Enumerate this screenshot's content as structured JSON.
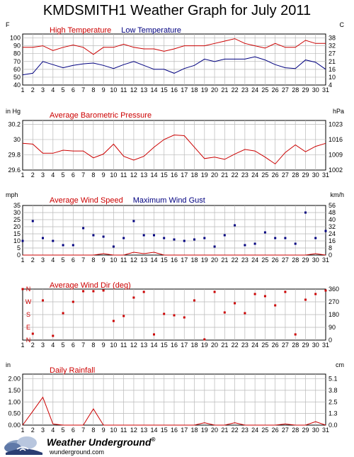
{
  "title": "KMDSMITH1 Weather Graph for July 2011",
  "footer": {
    "logo_text": "Weather Underground",
    "logo_mark": "®",
    "url": "wunderground.com"
  },
  "colors": {
    "red": "#cc0000",
    "blue": "#000080",
    "grid": "#b8b8b8"
  },
  "chart_data": [
    {
      "type": "line",
      "title": "",
      "left_unit": "F",
      "right_unit": "C",
      "x": [
        1,
        2,
        3,
        4,
        5,
        6,
        7,
        8,
        9,
        10,
        11,
        12,
        13,
        14,
        15,
        16,
        17,
        18,
        19,
        20,
        21,
        22,
        23,
        24,
        25,
        26,
        27,
        28,
        29,
        30,
        31
      ],
      "ylim": [
        40,
        105
      ],
      "left_ticks": [
        40,
        50,
        60,
        70,
        80,
        90,
        100
      ],
      "right_ticks": [
        {
          "value": 4,
          "at": 40
        },
        {
          "value": 10,
          "at": 50
        },
        {
          "value": 16,
          "at": 60
        },
        {
          "value": 21,
          "at": 70
        },
        {
          "value": 27,
          "at": 80
        },
        {
          "value": 32,
          "at": 90
        },
        {
          "value": 38,
          "at": 100
        }
      ],
      "legend": [
        {
          "name": "High Temperature",
          "color": "red"
        },
        {
          "name": "Low Temperature",
          "color": "blue"
        }
      ],
      "series": [
        {
          "name": "High Temperature",
          "color": "red",
          "style": "line",
          "values": [
            88,
            88,
            90,
            84,
            88,
            91,
            88,
            79,
            88,
            88,
            92,
            88,
            86,
            86,
            83,
            86,
            90,
            90,
            90,
            93,
            96,
            99,
            93,
            90,
            87,
            93,
            88,
            88,
            97,
            93,
            93
          ]
        },
        {
          "name": "Low Temperature",
          "color": "blue",
          "style": "line",
          "values": [
            53,
            55,
            70,
            66,
            62,
            65,
            67,
            68,
            65,
            61,
            66,
            70,
            65,
            60,
            60,
            55,
            61,
            65,
            73,
            70,
            73,
            73,
            73,
            76,
            72,
            66,
            62,
            61,
            72,
            69,
            60
          ]
        }
      ]
    },
    {
      "type": "line",
      "title": "Average Barometric Pressure",
      "left_unit": "in Hg",
      "right_unit": "hPa",
      "x": [
        1,
        2,
        3,
        4,
        5,
        6,
        7,
        8,
        9,
        10,
        11,
        12,
        13,
        14,
        15,
        16,
        17,
        18,
        19,
        20,
        21,
        22,
        23,
        24,
        25,
        26,
        27,
        28,
        29,
        30,
        31
      ],
      "ylim": [
        29.6,
        30.25
      ],
      "left_ticks": [
        29.6,
        29.8,
        30.0,
        30.2
      ],
      "right_ticks": [
        {
          "value": 1002,
          "at": 29.6
        },
        {
          "value": 1009,
          "at": 29.8
        },
        {
          "value": 1016,
          "at": 30.0
        },
        {
          "value": 1023,
          "at": 30.2
        }
      ],
      "legend": [
        {
          "name": "Average Barometric Pressure",
          "color": "red"
        }
      ],
      "series": [
        {
          "name": "Average Barometric Pressure",
          "color": "red",
          "style": "line",
          "values": [
            29.95,
            29.94,
            29.82,
            29.82,
            29.86,
            29.85,
            29.85,
            29.76,
            29.81,
            29.94,
            29.78,
            29.73,
            29.78,
            29.9,
            30.0,
            30.06,
            30.05,
            29.9,
            29.75,
            29.77,
            29.74,
            29.81,
            29.87,
            29.85,
            29.77,
            29.68,
            29.83,
            29.93,
            29.84,
            29.91,
            29.95
          ]
        }
      ]
    },
    {
      "type": "scatter",
      "title": "",
      "left_unit": "mph",
      "right_unit": "km/h",
      "x": [
        1,
        2,
        3,
        4,
        5,
        6,
        7,
        8,
        9,
        10,
        11,
        12,
        13,
        14,
        15,
        16,
        17,
        18,
        19,
        20,
        21,
        22,
        23,
        24,
        25,
        26,
        27,
        28,
        29,
        30,
        31
      ],
      "ylim": [
        0,
        35
      ],
      "left_ticks": [
        0,
        5,
        10,
        15,
        20,
        25,
        30,
        35
      ],
      "right_ticks": [
        {
          "value": 0,
          "at": 0
        },
        {
          "value": 8,
          "at": 5
        },
        {
          "value": 16,
          "at": 10
        },
        {
          "value": 24,
          "at": 15
        },
        {
          "value": 32,
          "at": 20
        },
        {
          "value": 40,
          "at": 25
        },
        {
          "value": 48,
          "at": 30
        },
        {
          "value": 56,
          "at": 35
        }
      ],
      "legend": [
        {
          "name": "Average Wind Speed",
          "color": "red"
        },
        {
          "name": "Maximum Wind Gust",
          "color": "blue"
        }
      ],
      "series": [
        {
          "name": "Average Wind Speed",
          "color": "red",
          "style": "line",
          "values": [
            0,
            0,
            0,
            0,
            0,
            0,
            0,
            0,
            1,
            0,
            0,
            2,
            1,
            2,
            0,
            0,
            0,
            0,
            0,
            0,
            0,
            0,
            0,
            0,
            0,
            0,
            0,
            0,
            0,
            1,
            0
          ]
        },
        {
          "name": "Maximum Wind Gust",
          "color": "blue",
          "style": "points",
          "values": [
            10,
            24,
            12,
            10,
            7,
            7,
            19,
            14,
            13,
            6,
            12,
            24,
            14,
            14,
            12,
            11,
            10,
            11,
            12,
            6,
            14,
            21,
            7,
            8,
            16,
            12,
            12,
            8,
            30,
            12,
            17
          ]
        }
      ]
    },
    {
      "type": "scatter",
      "title": "Average Wind Dir (deg)",
      "left_unit": "",
      "right_unit": "",
      "x": [
        1,
        2,
        3,
        4,
        5,
        6,
        7,
        8,
        9,
        10,
        11,
        12,
        13,
        14,
        15,
        16,
        17,
        18,
        19,
        20,
        21,
        22,
        23,
        24,
        25,
        26,
        27,
        28,
        29,
        30,
        31
      ],
      "ylim": [
        0,
        360
      ],
      "left_ticks": [],
      "left_letters": [
        {
          "label": "N",
          "at": 360
        },
        {
          "label": "W",
          "at": 270
        },
        {
          "label": "S",
          "at": 180
        },
        {
          "label": "E",
          "at": 90
        },
        {
          "label": "N",
          "at": 0
        }
      ],
      "right_ticks": [
        {
          "value": 0,
          "at": 0
        },
        {
          "value": 90,
          "at": 90
        },
        {
          "value": 180,
          "at": 180
        },
        {
          "value": 270,
          "at": 270
        },
        {
          "value": 360,
          "at": 360
        }
      ],
      "legend": [
        {
          "name": "Average Wind Dir (deg)",
          "color": "red"
        }
      ],
      "series": [
        {
          "name": "Average Wind Dir (deg)",
          "color": "red",
          "style": "points",
          "values": [
            360,
            45,
            280,
            30,
            190,
            270,
            345,
            345,
            350,
            135,
            170,
            300,
            340,
            40,
            185,
            175,
            160,
            280,
            5,
            340,
            195,
            260,
            190,
            325,
            310,
            245,
            340,
            40,
            285,
            325,
            350
          ]
        }
      ]
    },
    {
      "type": "area",
      "title": "Daily Rainfall",
      "left_unit": "in",
      "right_unit": "cm",
      "x": [
        1,
        2,
        3,
        4,
        5,
        6,
        7,
        8,
        9,
        10,
        11,
        12,
        13,
        14,
        15,
        16,
        17,
        18,
        19,
        20,
        21,
        22,
        23,
        24,
        25,
        26,
        27,
        28,
        29,
        30,
        31
      ],
      "ylim": [
        0,
        2.2
      ],
      "left_ticks": [
        0.0,
        0.5,
        1.0,
        1.5,
        2.0
      ],
      "left_tick_labels": [
        "0.00",
        "0.50",
        "1.00",
        "1.50",
        "2.00"
      ],
      "right_ticks": [
        {
          "value": "0.0",
          "at": 0.0
        },
        {
          "value": "1.3",
          "at": 0.5
        },
        {
          "value": "2.5",
          "at": 1.0
        },
        {
          "value": "3.8",
          "at": 1.5
        },
        {
          "value": "5.1",
          "at": 2.0
        }
      ],
      "legend": [
        {
          "name": "Daily Rainfall",
          "color": "red"
        }
      ],
      "series": [
        {
          "name": "Daily Rainfall",
          "color": "red",
          "style": "line",
          "values": [
            0,
            0.6,
            1.2,
            0.05,
            0,
            0,
            0,
            0.7,
            0,
            0,
            0,
            0,
            0,
            0,
            0,
            0,
            0,
            0,
            0.1,
            0,
            0,
            0.1,
            0,
            0,
            0,
            0,
            0.05,
            0,
            0,
            0.15,
            0
          ]
        }
      ]
    }
  ]
}
